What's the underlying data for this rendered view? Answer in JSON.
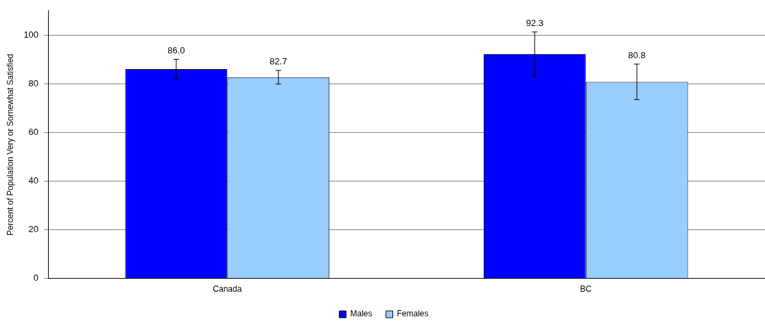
{
  "chart_data": {
    "type": "bar",
    "ylabel": "Percent of Population Very or Somewhat Satisfied",
    "categories": [
      "Canada",
      "BC"
    ],
    "series": [
      {
        "name": "Males",
        "color": "#0000ff",
        "values": [
          86.0,
          92.3
        ],
        "errors": [
          4.1,
          9.0
        ],
        "value_labels": [
          "86.0",
          "92.3"
        ]
      },
      {
        "name": "Females",
        "color": "#99ccff",
        "values": [
          82.7,
          80.8
        ],
        "errors": [
          2.8,
          7.3
        ],
        "value_labels": [
          "82.7",
          "80.8"
        ]
      }
    ],
    "ylim": [
      0,
      110
    ],
    "yticks": [
      0,
      20,
      40,
      60,
      80,
      100
    ],
    "grid": "y",
    "legend": "bottom"
  }
}
